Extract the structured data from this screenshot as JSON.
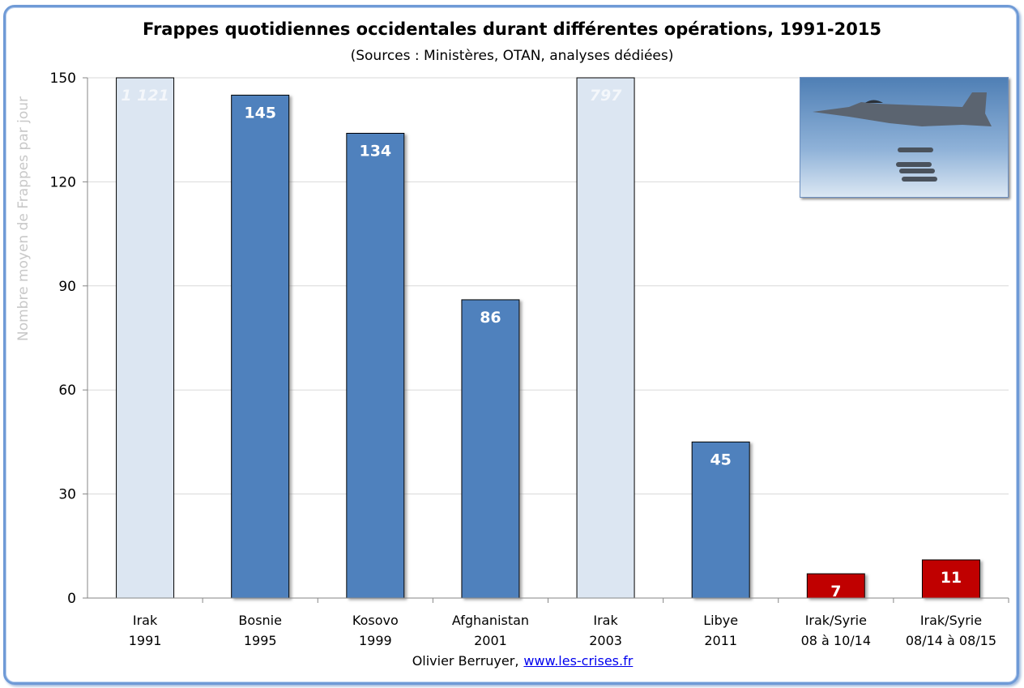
{
  "chart_data": {
    "type": "bar",
    "title": "Frappes quotidiennes occidentales durant différentes opérations, 1991-2015",
    "subtitle": "(Sources : Ministères, OTAN, analyses dédiées)",
    "xlabel": "",
    "ylabel": "Nombre moyen de Frappes par jour",
    "ylim": [
      0,
      150
    ],
    "yticks": [
      0,
      30,
      60,
      90,
      120,
      150
    ],
    "grid": true,
    "categories": [
      [
        "Irak",
        "1991"
      ],
      [
        "Bosnie",
        "1995"
      ],
      [
        "Kosovo",
        "1999"
      ],
      [
        "Afghanistan",
        "2001"
      ],
      [
        "Irak",
        "2003"
      ],
      [
        "Libye",
        "2011"
      ],
      [
        "Irak/Syrie",
        "08 à 10/14"
      ],
      [
        "Irak/Syrie",
        "08/14 à 08/15"
      ]
    ],
    "values": [
      1121,
      145,
      134,
      86,
      797,
      45,
      7,
      11
    ],
    "value_labels": [
      "1 121",
      "145",
      "134",
      "86",
      "797",
      "45",
      "7",
      "11"
    ],
    "bar_styles": [
      "clipped",
      "normal",
      "normal",
      "normal",
      "clipped",
      "normal",
      "highlight",
      "highlight"
    ],
    "colors": {
      "clipped": "#dce6f2",
      "normal": "#4f81bd",
      "highlight": "#c00000"
    }
  },
  "credit": {
    "author": "Olivier Berruyer,",
    "link": "www.les-crises.fr"
  },
  "image": {
    "icon": "fighter-jet-photo"
  }
}
